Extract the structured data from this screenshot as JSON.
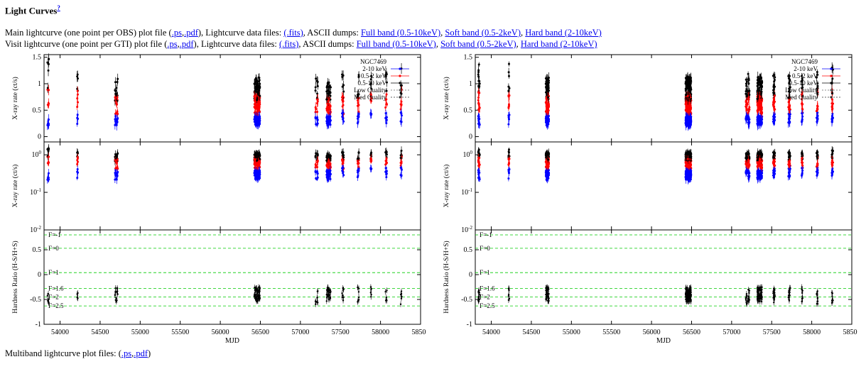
{
  "page": {
    "heading": "Light Curves",
    "help_link": "?",
    "main_prefix": "Main lightcurve (one point per OBS) plot file (",
    "main_links": [
      ".ps",
      ".pdf"
    ],
    "main_mid": "), Lightcurve data files: ",
    "main_fits": "(.fits)",
    "main_ascii": ", ASCII dumps: ",
    "bands": [
      "Full band (0.5-10keV)",
      "Soft band (0.5-2keV)",
      "Hard band (2-10keV)"
    ],
    "visit_prefix": "Visit lightcurve (one point per GTI) plot file (",
    "multi_prefix": "Multiband lightcurve plot files: (",
    "sep_comma": ",",
    "sep_close": ")"
  },
  "colors": {
    "hard": "#0000ff",
    "soft": "#ff0000",
    "full": "#000000",
    "gamma": "#00cc00",
    "link": "#0000ee"
  },
  "chart_data": [
    {
      "type": "scatter",
      "title": "Main lightcurve (one point per OBS)",
      "source": "NGC7469",
      "xlabel": "MJD",
      "xlim": [
        53800,
        58500
      ],
      "xticks": [
        54000,
        54500,
        55000,
        55500,
        56000,
        56500,
        57000,
        57500,
        58000,
        58500
      ],
      "panels": [
        {
          "ylabel": "X-ray rate (ct/s)",
          "scale": "linear",
          "ylim": [
            -0.1,
            1.55
          ],
          "yticks": [
            0,
            0.5,
            1,
            1.5
          ]
        },
        {
          "ylabel": "X-ray rate (ct/s)",
          "scale": "log",
          "ylim": [
            0.01,
            2.2
          ],
          "yticks": [
            "10^-2",
            "10^-1",
            "10^0"
          ]
        },
        {
          "ylabel": "Hardness Ratio (H-S/H+S)",
          "scale": "linear",
          "ylim": [
            -1,
            0.9
          ],
          "yticks": [
            -1,
            -0.5,
            0,
            0.5
          ]
        }
      ],
      "legend": [
        "NGC7469",
        "2-10 keV",
        "0.5-2 keV",
        "0.5-10 keV",
        "Low Quality",
        "Med Quality"
      ],
      "gamma_lines": [
        {
          "label": "Γ=-1",
          "hr": 0.8
        },
        {
          "label": "Γ=0",
          "hr": 0.53
        },
        {
          "label": "Γ=1",
          "hr": 0.04
        },
        {
          "label": "Γ=1.6",
          "hr": -0.28
        },
        {
          "label": "Γ=2",
          "hr": -0.45
        },
        {
          "label": "Γ=2.5",
          "hr": -0.63
        }
      ],
      "clusters": [
        {
          "mjd": 53850,
          "n": 6,
          "w": 18,
          "full": 1.2,
          "soft": 0.7,
          "hard": 0.3,
          "hr": -0.45
        },
        {
          "mjd": 54220,
          "n": 5,
          "w": 14,
          "full": 1.1,
          "soft": 0.7,
          "hard": 0.32,
          "hr": -0.38
        },
        {
          "mjd": 54700,
          "n": 14,
          "w": 40,
          "full": 0.9,
          "soft": 0.6,
          "hard": 0.3,
          "hr": -0.4
        },
        {
          "mjd": 56460,
          "n": 60,
          "w": 70,
          "full": 0.9,
          "soft": 0.6,
          "hard": 0.3,
          "hr": -0.4
        },
        {
          "mjd": 57200,
          "n": 10,
          "w": 40,
          "full": 0.95,
          "soft": 0.6,
          "hard": 0.3,
          "hr": -0.45
        },
        {
          "mjd": 57350,
          "n": 30,
          "w": 60,
          "full": 0.9,
          "soft": 0.6,
          "hard": 0.3,
          "hr": -0.4
        },
        {
          "mjd": 57530,
          "n": 8,
          "w": 20,
          "full": 0.95,
          "soft": 0.6,
          "hard": 0.35,
          "hr": -0.42
        },
        {
          "mjd": 57720,
          "n": 8,
          "w": 20,
          "full": 0.95,
          "soft": 0.6,
          "hard": 0.35,
          "hr": -0.4
        },
        {
          "mjd": 57880,
          "n": 6,
          "w": 18,
          "full": 1.0,
          "soft": 0.65,
          "hard": 0.35,
          "hr": -0.4
        },
        {
          "mjd": 58070,
          "n": 6,
          "w": 18,
          "full": 1.0,
          "soft": 0.65,
          "hard": 0.35,
          "hr": -0.45
        },
        {
          "mjd": 58260,
          "n": 6,
          "w": 18,
          "full": 1.05,
          "soft": 0.7,
          "hard": 0.35,
          "hr": -0.45
        }
      ]
    },
    {
      "type": "scatter",
      "title": "Visit lightcurve (one point per GTI)",
      "source": "NGC7469",
      "xlabel": "MJD",
      "xlim": [
        53800,
        58500
      ],
      "xticks": [
        54000,
        54500,
        55000,
        55500,
        56000,
        56500,
        57000,
        57500,
        58000,
        58500
      ],
      "panels": [
        {
          "ylabel": "X-ray rate (ct/s)",
          "scale": "linear",
          "ylim": [
            -0.1,
            1.55
          ],
          "yticks": [
            0,
            0.5,
            1,
            1.5
          ]
        },
        {
          "ylabel": "X-ray rate (ct/s)",
          "scale": "log",
          "ylim": [
            0.01,
            2.2
          ],
          "yticks": [
            "10^-2",
            "10^-1",
            "10^0"
          ]
        },
        {
          "ylabel": "Hardness Ratio (H-S/H+S)",
          "scale": "linear",
          "ylim": [
            -1,
            0.9
          ],
          "yticks": [
            -1,
            -0.5,
            0,
            0.5
          ]
        }
      ],
      "legend": [
        "NGC7469",
        "2-10 keV",
        "0.5-2 keV",
        "0.5-10 keV",
        "Low Quality",
        "Med Quality"
      ],
      "gamma_lines": [
        {
          "label": "Γ=-1",
          "hr": 0.8
        },
        {
          "label": "Γ=0",
          "hr": 0.53
        },
        {
          "label": "Γ=1",
          "hr": 0.04
        },
        {
          "label": "Γ=1.6",
          "hr": -0.28
        },
        {
          "label": "Γ=2",
          "hr": -0.45
        },
        {
          "label": "Γ=2.5",
          "hr": -0.63
        }
      ],
      "clusters": [
        {
          "mjd": 53850,
          "n": 12,
          "w": 25,
          "full": 1.1,
          "soft": 0.7,
          "hard": 0.3,
          "hr": -0.45
        },
        {
          "mjd": 54220,
          "n": 8,
          "w": 14,
          "full": 1.1,
          "soft": 0.7,
          "hard": 0.32,
          "hr": -0.38
        },
        {
          "mjd": 54700,
          "n": 40,
          "w": 40,
          "full": 0.95,
          "soft": 0.6,
          "hard": 0.3,
          "hr": -0.4
        },
        {
          "mjd": 56460,
          "n": 110,
          "w": 70,
          "full": 0.9,
          "soft": 0.6,
          "hard": 0.3,
          "hr": -0.4
        },
        {
          "mjd": 57200,
          "n": 20,
          "w": 50,
          "full": 0.95,
          "soft": 0.6,
          "hard": 0.3,
          "hr": -0.45
        },
        {
          "mjd": 57350,
          "n": 60,
          "w": 60,
          "full": 0.9,
          "soft": 0.6,
          "hard": 0.3,
          "hr": -0.4
        },
        {
          "mjd": 57530,
          "n": 14,
          "w": 25,
          "full": 0.95,
          "soft": 0.6,
          "hard": 0.35,
          "hr": -0.42
        },
        {
          "mjd": 57720,
          "n": 14,
          "w": 25,
          "full": 0.95,
          "soft": 0.6,
          "hard": 0.35,
          "hr": -0.4
        },
        {
          "mjd": 57880,
          "n": 10,
          "w": 20,
          "full": 1.0,
          "soft": 0.65,
          "hard": 0.35,
          "hr": -0.4
        },
        {
          "mjd": 58070,
          "n": 10,
          "w": 20,
          "full": 1.0,
          "soft": 0.65,
          "hard": 0.35,
          "hr": -0.45
        },
        {
          "mjd": 58260,
          "n": 10,
          "w": 20,
          "full": 1.05,
          "soft": 0.7,
          "hard": 0.35,
          "hr": -0.45
        }
      ]
    }
  ]
}
